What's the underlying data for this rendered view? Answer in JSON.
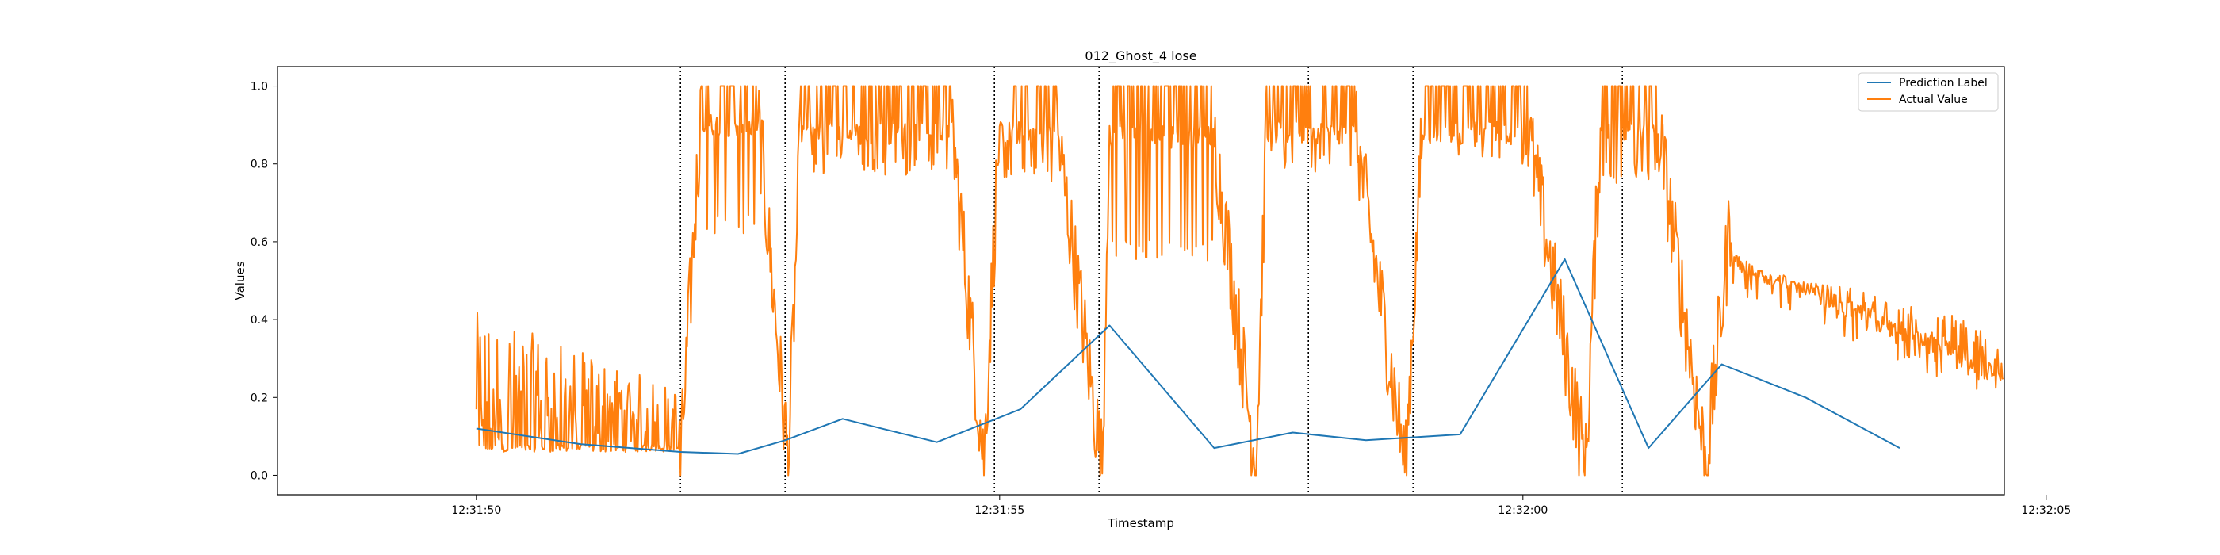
{
  "chart_data": {
    "type": "line",
    "title": "012_Ghost_4 lose",
    "xlabel": "Timestamp",
    "ylabel": "Values",
    "x_unit": "seconds after 12:31:48",
    "xlim": [
      0.1,
      16.6
    ],
    "ylim": [
      -0.05,
      1.05
    ],
    "x_ticks": [
      {
        "value": 2.0,
        "label": "12:31:50"
      },
      {
        "value": 7.0,
        "label": "12:31:55"
      },
      {
        "value": 12.0,
        "label": "12:32:00"
      },
      {
        "value": 17.0,
        "label": "12:32:05"
      }
    ],
    "y_ticks": [
      {
        "value": 0.0,
        "label": "0.0"
      },
      {
        "value": 0.2,
        "label": "0.2"
      },
      {
        "value": 0.4,
        "label": "0.4"
      },
      {
        "value": 0.6,
        "label": "0.6"
      },
      {
        "value": 0.8,
        "label": "0.8"
      },
      {
        "value": 1.0,
        "label": "1.0"
      }
    ],
    "vlines": [
      3.95,
      4.95,
      6.95,
      7.95,
      9.95,
      10.95,
      12.95
    ],
    "legend_position": "top-right",
    "series": [
      {
        "name": "Prediction Label",
        "color": "#1f77b4",
        "x": [
          2.0,
          3.0,
          3.95,
          4.5,
          4.95,
          5.5,
          6.4,
          7.2,
          8.05,
          9.05,
          9.8,
          10.5,
          11.4,
          12.4,
          13.2,
          13.9,
          14.7,
          15.6,
          16.4
        ],
        "y": [
          0.12,
          0.08,
          0.06,
          0.055,
          0.09,
          0.145,
          0.085,
          0.17,
          0.385,
          0.07,
          0.11,
          0.09,
          0.105,
          0.555,
          0.07,
          0.285,
          0.2,
          0.07,
          null
        ]
      },
      {
        "name": "Actual Value",
        "color": "#ff7f0e",
        "segments": [
          {
            "x0": 2.0,
            "x1": 3.95,
            "kind": "noise",
            "base": 0.06,
            "spike_max": 0.36,
            "decay": true
          },
          {
            "x0": 3.95,
            "x1": 4.15,
            "kind": "ramp",
            "from": 0.02,
            "to": 0.95
          },
          {
            "x0": 4.15,
            "x1": 4.7,
            "kind": "high",
            "base": 0.9,
            "low": 0.62
          },
          {
            "x0": 4.7,
            "x1": 4.98,
            "kind": "ramp",
            "from": 0.9,
            "to": 0.02
          },
          {
            "x0": 4.98,
            "x1": 5.1,
            "kind": "ramp",
            "from": 0.02,
            "to": 0.9
          },
          {
            "x0": 5.1,
            "x1": 6.55,
            "kind": "high",
            "base": 0.88,
            "low": 0.77
          },
          {
            "x0": 6.55,
            "x1": 6.85,
            "kind": "ramp",
            "from": 0.88,
            "to": 0.03
          },
          {
            "x0": 6.85,
            "x1": 7.0,
            "kind": "ramp",
            "from": 0.03,
            "to": 0.92
          },
          {
            "x0": 7.0,
            "x1": 7.55,
            "kind": "high",
            "base": 0.88,
            "low": 0.75
          },
          {
            "x0": 7.55,
            "x1": 7.98,
            "kind": "ramp",
            "from": 0.88,
            "to": 0.02
          },
          {
            "x0": 7.98,
            "x1": 8.05,
            "kind": "ramp",
            "from": 0.02,
            "to": 0.95
          },
          {
            "x0": 8.05,
            "x1": 9.05,
            "kind": "high",
            "base": 0.87,
            "low": 0.55
          },
          {
            "x0": 9.05,
            "x1": 9.45,
            "kind": "ramp",
            "from": 0.87,
            "to": 0.02
          },
          {
            "x0": 9.45,
            "x1": 9.55,
            "kind": "ramp",
            "from": 0.02,
            "to": 0.9
          },
          {
            "x0": 9.55,
            "x1": 10.4,
            "kind": "high",
            "base": 0.88,
            "low": 0.78
          },
          {
            "x0": 10.4,
            "x1": 10.88,
            "kind": "ramp",
            "from": 0.88,
            "to": 0.02
          },
          {
            "x0": 10.88,
            "x1": 11.05,
            "kind": "ramp",
            "from": 0.02,
            "to": 0.95
          },
          {
            "x0": 11.05,
            "x1": 12.05,
            "kind": "high",
            "base": 0.88,
            "low": 0.8
          },
          {
            "x0": 12.05,
            "x1": 12.6,
            "kind": "ramp",
            "from": 0.88,
            "to": 0.02
          },
          {
            "x0": 12.6,
            "x1": 12.75,
            "kind": "ramp",
            "from": 0.02,
            "to": 0.95
          },
          {
            "x0": 12.75,
            "x1": 13.3,
            "kind": "high",
            "base": 0.88,
            "low": 0.75
          },
          {
            "x0": 13.3,
            "x1": 13.75,
            "kind": "ramp",
            "from": 0.88,
            "to": 0.02
          },
          {
            "x0": 13.75,
            "x1": 14.0,
            "kind": "ramp",
            "from": 0.02,
            "to": 0.7
          },
          {
            "x0": 14.0,
            "x1": 16.6,
            "kind": "decay",
            "from": 0.55,
            "to": 0.26,
            "spike_max": 0.5
          }
        ]
      }
    ]
  }
}
